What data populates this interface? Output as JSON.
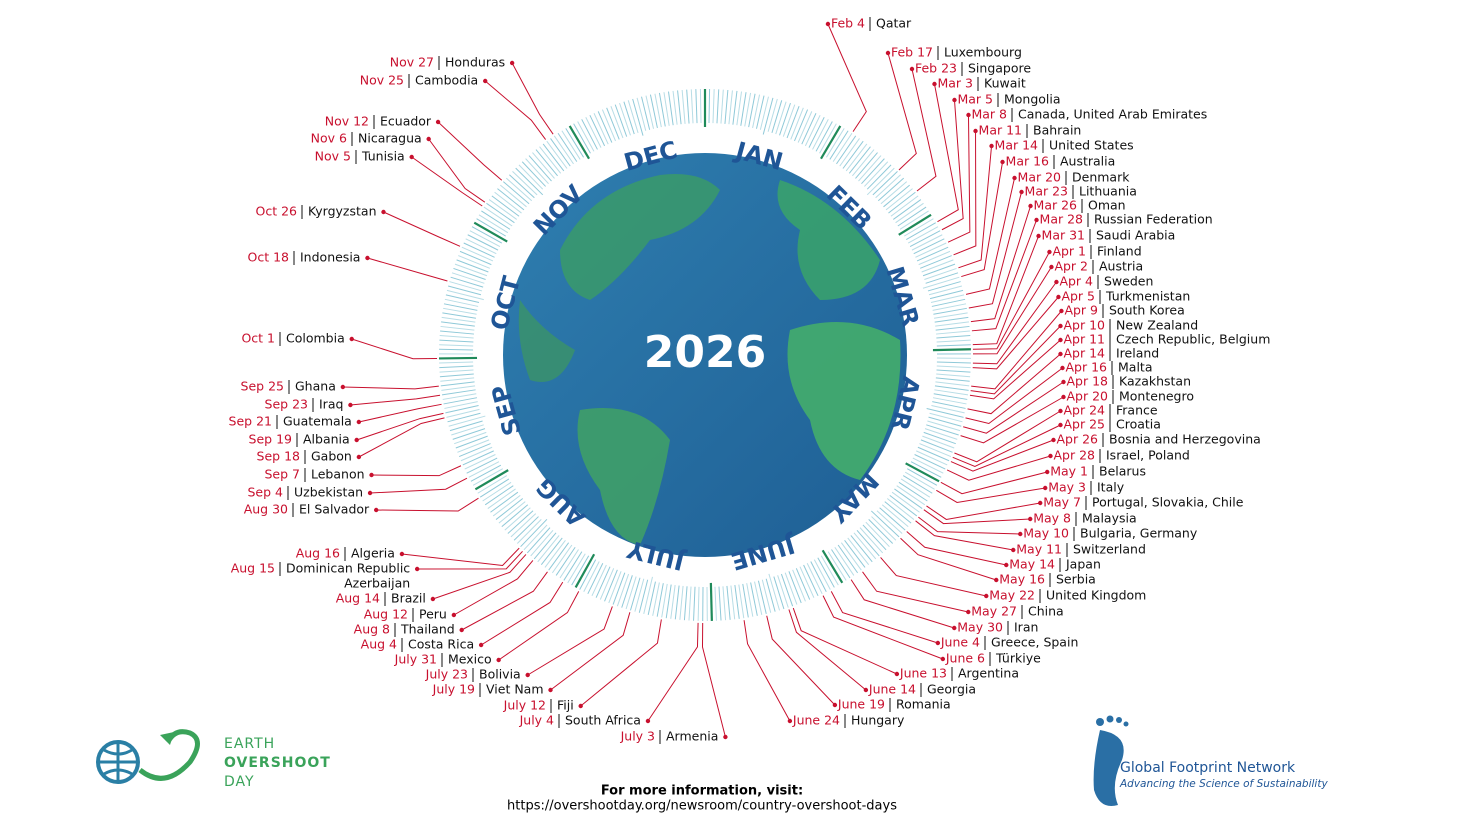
{
  "year": "2026",
  "months": [
    "JAN",
    "FEB",
    "MAR",
    "APR",
    "MAY",
    "JUNE",
    "JULY",
    "AUG",
    "SEP",
    "OCT",
    "NOV",
    "DEC"
  ],
  "entries": [
    {
      "date": "Feb 4",
      "country": "Qatar"
    },
    {
      "date": "Feb 17",
      "country": "Luxembourg"
    },
    {
      "date": "Feb 23",
      "country": "Singapore"
    },
    {
      "date": "Mar 3",
      "country": "Kuwait"
    },
    {
      "date": "Mar 5",
      "country": "Mongolia"
    },
    {
      "date": "Mar 8",
      "country": "Canada, United Arab Emirates"
    },
    {
      "date": "Mar 11",
      "country": "Bahrain"
    },
    {
      "date": "Mar 14",
      "country": "United States"
    },
    {
      "date": "Mar 16",
      "country": "Australia"
    },
    {
      "date": "Mar 20",
      "country": "Denmark"
    },
    {
      "date": "Mar 23",
      "country": "Lithuania"
    },
    {
      "date": "Mar 26",
      "country": "Oman"
    },
    {
      "date": "Mar 28",
      "country": "Russian Federation"
    },
    {
      "date": "Mar 31",
      "country": "Saudi Arabia"
    },
    {
      "date": "Apr 1",
      "country": "Finland"
    },
    {
      "date": "Apr 2",
      "country": "Austria"
    },
    {
      "date": "Apr 4",
      "country": "Sweden"
    },
    {
      "date": "Apr 5",
      "country": "Turkmenistan"
    },
    {
      "date": "Apr 9",
      "country": "South Korea"
    },
    {
      "date": "Apr 10",
      "country": "New Zealand"
    },
    {
      "date": "Apr 11",
      "country": "Czech Republic, Belgium"
    },
    {
      "date": "Apr 14",
      "country": "Ireland"
    },
    {
      "date": "Apr 16",
      "country": "Malta"
    },
    {
      "date": "Apr 18",
      "country": "Kazakhstan"
    },
    {
      "date": "Apr 20",
      "country": "Montenegro"
    },
    {
      "date": "Apr 24",
      "country": "France"
    },
    {
      "date": "Apr 25",
      "country": "Croatia"
    },
    {
      "date": "Apr 26",
      "country": "Bosnia and Herzegovina"
    },
    {
      "date": "Apr 28",
      "country": "Israel, Poland"
    },
    {
      "date": "May 1",
      "country": "Belarus"
    },
    {
      "date": "May 3",
      "country": "Italy"
    },
    {
      "date": "May 7",
      "country": "Portugal, Slovakia, Chile"
    },
    {
      "date": "May 8",
      "country": "Malaysia"
    },
    {
      "date": "May 10",
      "country": "Bulgaria, Germany"
    },
    {
      "date": "May 11",
      "country": "Switzerland"
    },
    {
      "date": "May 14",
      "country": "Japan"
    },
    {
      "date": "May 16",
      "country": "Serbia"
    },
    {
      "date": "May 22",
      "country": "United Kingdom"
    },
    {
      "date": "May 27",
      "country": "China"
    },
    {
      "date": "May 30",
      "country": "Iran"
    },
    {
      "date": "June 4",
      "country": "Greece, Spain"
    },
    {
      "date": "June 6",
      "country": "Türkiye"
    },
    {
      "date": "June 13",
      "country": "Argentina"
    },
    {
      "date": "June 14",
      "country": "Georgia"
    },
    {
      "date": "June 19",
      "country": "Romania"
    },
    {
      "date": "June 24",
      "country": "Hungary"
    },
    {
      "date": "July 3",
      "country": "Armenia"
    },
    {
      "date": "July 4",
      "country": "South Africa"
    },
    {
      "date": "July 12",
      "country": "Fiji"
    },
    {
      "date": "July 19",
      "country": "Viet Nam"
    },
    {
      "date": "July 23",
      "country": "Bolivia"
    },
    {
      "date": "July 31",
      "country": "Mexico"
    },
    {
      "date": "Aug 4",
      "country": "Costa Rica"
    },
    {
      "date": "Aug 8",
      "country": "Thailand"
    },
    {
      "date": "Aug 12",
      "country": "Peru"
    },
    {
      "date": "Aug 14",
      "country": "Brazil"
    },
    {
      "date": "Aug 15",
      "country": [
        "Dominican Republic",
        "Azerbaijan"
      ]
    },
    {
      "date": "Aug 16",
      "country": "Algeria"
    },
    {
      "date": "Aug 30",
      "country": "El Salvador"
    },
    {
      "date": "Sep 4",
      "country": "Uzbekistan"
    },
    {
      "date": "Sep 7",
      "country": "Lebanon"
    },
    {
      "date": "Sep 18",
      "country": "Gabon"
    },
    {
      "date": "Sep 19",
      "country": "Albania"
    },
    {
      "date": "Sep 21",
      "country": "Guatemala"
    },
    {
      "date": "Sep 23",
      "country": "Iraq"
    },
    {
      "date": "Sep 25",
      "country": "Ghana"
    },
    {
      "date": "Oct 1",
      "country": "Colombia"
    },
    {
      "date": "Oct 18",
      "country": "Indonesia"
    },
    {
      "date": "Oct 26",
      "country": "Kyrgyzstan"
    },
    {
      "date": "Nov 5",
      "country": "Tunisia"
    },
    {
      "date": "Nov 6",
      "country": "Nicaragua"
    },
    {
      "date": "Nov 12",
      "country": "Ecuador"
    },
    {
      "date": "Nov 25",
      "country": "Cambodia"
    },
    {
      "date": "Nov 27",
      "country": "Honduras"
    }
  ],
  "logo_left": [
    "EARTH",
    "OVERSHOOT",
    "DAY"
  ],
  "logo_right": {
    "name": "Global Footprint Network",
    "tagline": "Advancing the Science of Sustainability"
  },
  "footer": {
    "heading": "For more information, visit:",
    "url": "https://overshootday.org/newsroom/country-overshoot-days"
  }
}
